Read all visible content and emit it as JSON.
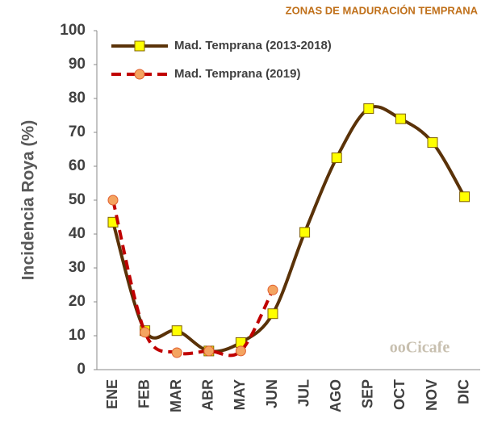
{
  "chart_data": {
    "type": "line",
    "title": "ZONAS DE MADURACIÓN TEMPRANA",
    "y_label": "Incidencia Roya (%)",
    "categories": [
      "ENE",
      "FEB",
      "MAR",
      "ABR",
      "MAY",
      "JUN",
      "JUL",
      "AGO",
      "SEP",
      "OCT",
      "NOV",
      "DIC"
    ],
    "series": [
      {
        "name": "Mad. Temprana (2013-2018)",
        "color": "#5a3208",
        "marker_color": "#ffff00",
        "marker": "square",
        "dashed": false,
        "values": [
          43.5,
          11.5,
          11.5,
          5.5,
          8,
          16.5,
          40.5,
          62.5,
          77,
          74,
          67,
          51
        ]
      },
      {
        "name": "Mad. Temprana (2019)",
        "color": "#c00000",
        "marker_color": "#f4a460",
        "marker": "circle",
        "dashed": true,
        "values": [
          50,
          11,
          5,
          5.5,
          5.5,
          23.5,
          null,
          null,
          null,
          null,
          null,
          null
        ]
      }
    ],
    "ylim": [
      0,
      100
    ],
    "yticks": [
      0,
      10,
      20,
      30,
      40,
      50,
      60,
      70,
      80,
      90,
      100
    ],
    "grid": false,
    "legend": "top-left",
    "watermark": "ooCicafe"
  }
}
